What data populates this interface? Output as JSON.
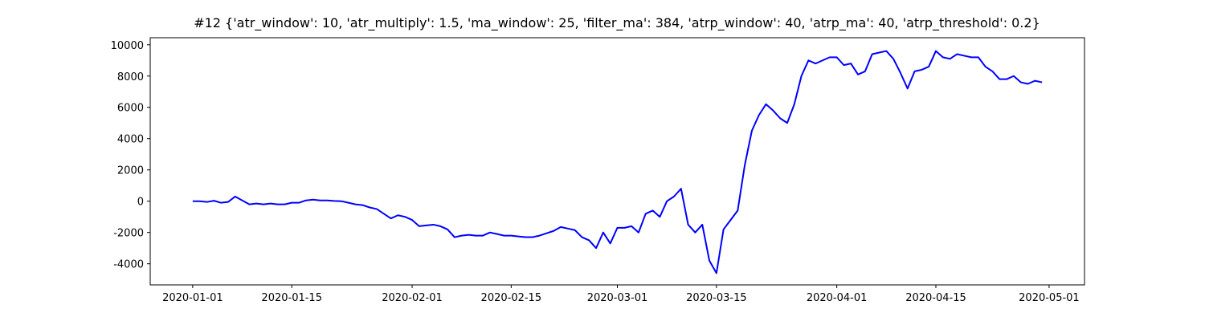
{
  "chart_data": {
    "type": "line",
    "title": "#12 {'atr_window': 10, 'atr_multiply': 1.5, 'ma_window': 25, 'filter_ma': 384, 'atrp_window': 40, 'atrp_ma': 40, 'atrp_threshold': 0.2}",
    "x": [
      "2020-01-01",
      "2020-01-02",
      "2020-01-03",
      "2020-01-04",
      "2020-01-05",
      "2020-01-06",
      "2020-01-07",
      "2020-01-08",
      "2020-01-09",
      "2020-01-10",
      "2020-01-11",
      "2020-01-12",
      "2020-01-13",
      "2020-01-14",
      "2020-01-15",
      "2020-01-16",
      "2020-01-17",
      "2020-01-18",
      "2020-01-19",
      "2020-01-20",
      "2020-01-21",
      "2020-01-22",
      "2020-01-23",
      "2020-01-24",
      "2020-01-25",
      "2020-01-26",
      "2020-01-27",
      "2020-01-28",
      "2020-01-29",
      "2020-01-30",
      "2020-01-31",
      "2020-02-01",
      "2020-02-02",
      "2020-02-03",
      "2020-02-04",
      "2020-02-05",
      "2020-02-06",
      "2020-02-07",
      "2020-02-08",
      "2020-02-09",
      "2020-02-10",
      "2020-02-11",
      "2020-02-12",
      "2020-02-13",
      "2020-02-14",
      "2020-02-15",
      "2020-02-16",
      "2020-02-17",
      "2020-02-18",
      "2020-02-19",
      "2020-02-20",
      "2020-02-21",
      "2020-02-22",
      "2020-02-23",
      "2020-02-24",
      "2020-02-25",
      "2020-02-26",
      "2020-02-27",
      "2020-02-28",
      "2020-02-29",
      "2020-03-01",
      "2020-03-02",
      "2020-03-03",
      "2020-03-04",
      "2020-03-05",
      "2020-03-06",
      "2020-03-07",
      "2020-03-08",
      "2020-03-09",
      "2020-03-10",
      "2020-03-11",
      "2020-03-12",
      "2020-03-13",
      "2020-03-14",
      "2020-03-15",
      "2020-03-16",
      "2020-03-17",
      "2020-03-18",
      "2020-03-19",
      "2020-03-20",
      "2020-03-21",
      "2020-03-22",
      "2020-03-23",
      "2020-03-24",
      "2020-03-25",
      "2020-03-26",
      "2020-03-27",
      "2020-03-28",
      "2020-03-29",
      "2020-03-30",
      "2020-03-31",
      "2020-04-01",
      "2020-04-02",
      "2020-04-03",
      "2020-04-04",
      "2020-04-05",
      "2020-04-06",
      "2020-04-07",
      "2020-04-08",
      "2020-04-09",
      "2020-04-10",
      "2020-04-11",
      "2020-04-12",
      "2020-04-13",
      "2020-04-14",
      "2020-04-15",
      "2020-04-16",
      "2020-04-17",
      "2020-04-18",
      "2020-04-19",
      "2020-04-20",
      "2020-04-21",
      "2020-04-22",
      "2020-04-23",
      "2020-04-24",
      "2020-04-25",
      "2020-04-26",
      "2020-04-27",
      "2020-04-28",
      "2020-04-29",
      "2020-04-30"
    ],
    "values": [
      0,
      0,
      -50,
      30,
      -100,
      -50,
      300,
      50,
      -200,
      -150,
      -200,
      -150,
      -200,
      -200,
      -100,
      -100,
      50,
      100,
      50,
      50,
      20,
      0,
      -100,
      -200,
      -250,
      -400,
      -500,
      -800,
      -1100,
      -900,
      -1000,
      -1200,
      -1600,
      -1550,
      -1500,
      -1600,
      -1800,
      -2300,
      -2200,
      -2150,
      -2200,
      -2200,
      -2000,
      -2100,
      -2200,
      -2200,
      -2250,
      -2300,
      -2300,
      -2200,
      -2050,
      -1900,
      -1650,
      -1750,
      -1850,
      -2300,
      -2500,
      -3000,
      -2000,
      -2700,
      -1700,
      -1700,
      -1600,
      -2000,
      -800,
      -600,
      -1000,
      0,
      300,
      800,
      -1500,
      -2000,
      -1500,
      -3800,
      -4600,
      -1800,
      -1200,
      -600,
      2300,
      4500,
      5500,
      6200,
      5800,
      5300,
      5000,
      6200,
      8000,
      9000,
      8800,
      9000,
      9200,
      9200,
      8700,
      8800,
      8100,
      8300,
      9400,
      9500,
      9600,
      9100,
      8200,
      7200,
      8300,
      8400,
      8600,
      9600,
      9200,
      9100,
      9400,
      9300,
      9200,
      9200,
      8600,
      8300,
      7800,
      7800,
      8000,
      7600,
      7500,
      7700,
      7600
    ],
    "color": "#0000ff",
    "xlim": [
      "2019-12-26",
      "2020-05-06"
    ],
    "xticks": [
      "2020-01-01",
      "2020-01-15",
      "2020-02-01",
      "2020-02-15",
      "2020-03-01",
      "2020-03-15",
      "2020-04-01",
      "2020-04-15",
      "2020-05-01"
    ],
    "ylim": [
      -5350,
      10450
    ],
    "yticks": [
      -4000,
      -2000,
      0,
      2000,
      4000,
      6000,
      8000,
      10000
    ],
    "grid": false
  }
}
